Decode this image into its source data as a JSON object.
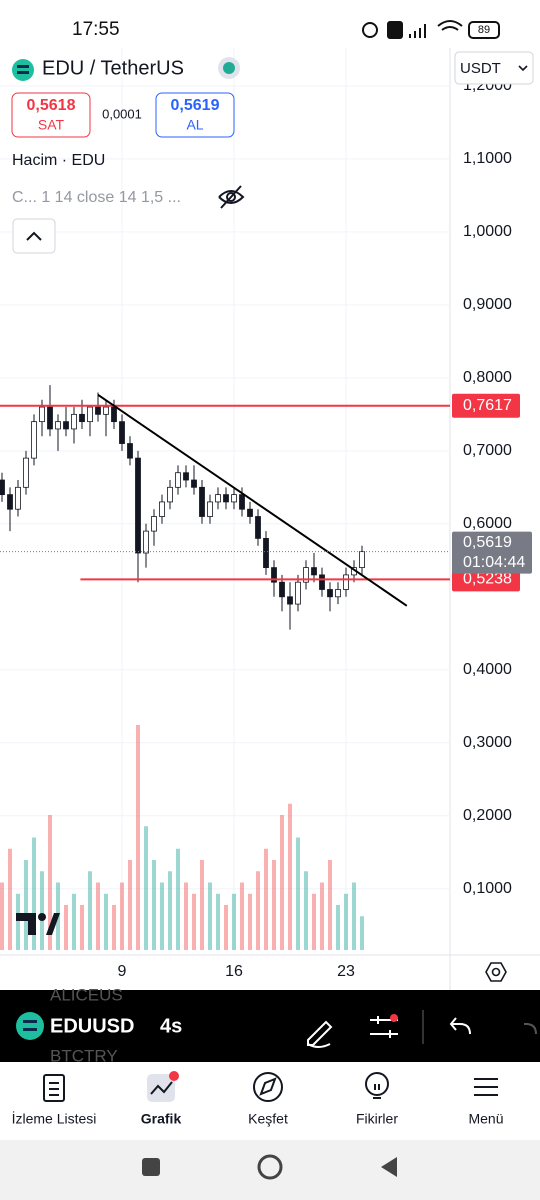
{
  "status_bar": {
    "time": "17:55",
    "battery": "89"
  },
  "header": {
    "symbol": "EDU / TetherUS",
    "currency": "USDT",
    "sell_price": "0,5618",
    "sell_label": "SAT",
    "spread": "0,0001",
    "buy_price": "0,5619",
    "buy_label": "AL",
    "volume_label": "Hacim · EDU",
    "indicator_label": "C... 1 14 close 14 1,5 ..."
  },
  "chart_data": {
    "type": "candlestick",
    "up_color": "#26a69a",
    "down_color": "#ef5350",
    "grid": true,
    "ylim": [
      0.016,
      1.252
    ],
    "yticks": [
      {
        "value": 0.1,
        "label": "0,1000"
      },
      {
        "value": 0.2,
        "label": "0,2000"
      },
      {
        "value": 0.3,
        "label": "0,3000"
      },
      {
        "value": 0.4,
        "label": "0,4000"
      },
      {
        "value": 0.6,
        "label": "0,6000"
      },
      {
        "value": 0.7,
        "label": "0,7000"
      },
      {
        "value": 0.8,
        "label": "0,8000"
      },
      {
        "value": 0.9,
        "label": "0,9000"
      },
      {
        "value": 1.0,
        "label": "1,0000"
      },
      {
        "value": 1.1,
        "label": "1,1000"
      },
      {
        "value": 1.2,
        "label": "1,2000"
      }
    ],
    "xlim": [
      1.375,
      29.5
    ],
    "xticks": [
      9,
      16,
      23
    ],
    "x": [
      1.5,
      2,
      2.5,
      3,
      3.5,
      4,
      4.5,
      5,
      5.5,
      6,
      6.5,
      7,
      7.5,
      8,
      8.5,
      9,
      9.5,
      10,
      10.5,
      11,
      11.5,
      12,
      12.5,
      13,
      13.5,
      14,
      14.5,
      15,
      15.5,
      16,
      16.5,
      17,
      17.5,
      18,
      18.5,
      19,
      19.5,
      20,
      20.5,
      21,
      21.5,
      22,
      22.5,
      23,
      23.5,
      24
    ],
    "candles": [
      [
        0.66,
        0.67,
        0.63,
        0.64
      ],
      [
        0.64,
        0.65,
        0.59,
        0.62
      ],
      [
        0.62,
        0.66,
        0.61,
        0.65
      ],
      [
        0.65,
        0.7,
        0.64,
        0.69
      ],
      [
        0.69,
        0.75,
        0.68,
        0.74
      ],
      [
        0.74,
        0.77,
        0.72,
        0.76
      ],
      [
        0.76,
        0.79,
        0.72,
        0.73
      ],
      [
        0.73,
        0.75,
        0.7,
        0.74
      ],
      [
        0.74,
        0.76,
        0.72,
        0.73
      ],
      [
        0.73,
        0.76,
        0.71,
        0.75
      ],
      [
        0.75,
        0.77,
        0.73,
        0.74
      ],
      [
        0.74,
        0.76,
        0.72,
        0.76
      ],
      [
        0.76,
        0.78,
        0.74,
        0.75
      ],
      [
        0.75,
        0.77,
        0.72,
        0.76
      ],
      [
        0.76,
        0.77,
        0.73,
        0.74
      ],
      [
        0.74,
        0.75,
        0.7,
        0.71
      ],
      [
        0.71,
        0.72,
        0.68,
        0.69
      ],
      [
        0.69,
        0.7,
        0.52,
        0.56
      ],
      [
        0.56,
        0.6,
        0.54,
        0.59
      ],
      [
        0.59,
        0.62,
        0.57,
        0.61
      ],
      [
        0.61,
        0.64,
        0.6,
        0.63
      ],
      [
        0.63,
        0.66,
        0.62,
        0.65
      ],
      [
        0.65,
        0.68,
        0.64,
        0.67
      ],
      [
        0.67,
        0.68,
        0.65,
        0.66
      ],
      [
        0.66,
        0.68,
        0.64,
        0.65
      ],
      [
        0.65,
        0.66,
        0.6,
        0.61
      ],
      [
        0.61,
        0.64,
        0.6,
        0.63
      ],
      [
        0.63,
        0.65,
        0.62,
        0.64
      ],
      [
        0.64,
        0.65,
        0.62,
        0.63
      ],
      [
        0.63,
        0.65,
        0.62,
        0.64
      ],
      [
        0.64,
        0.65,
        0.61,
        0.62
      ],
      [
        0.62,
        0.63,
        0.6,
        0.61
      ],
      [
        0.61,
        0.62,
        0.57,
        0.58
      ],
      [
        0.58,
        0.59,
        0.53,
        0.54
      ],
      [
        0.54,
        0.55,
        0.5,
        0.52
      ],
      [
        0.52,
        0.53,
        0.48,
        0.5
      ],
      [
        0.5,
        0.52,
        0.455,
        0.49
      ],
      [
        0.49,
        0.53,
        0.48,
        0.52
      ],
      [
        0.52,
        0.55,
        0.51,
        0.54
      ],
      [
        0.54,
        0.56,
        0.52,
        0.53
      ],
      [
        0.53,
        0.54,
        0.5,
        0.51
      ],
      [
        0.51,
        0.52,
        0.48,
        0.5
      ],
      [
        0.5,
        0.52,
        0.49,
        0.51
      ],
      [
        0.51,
        0.54,
        0.5,
        0.53
      ],
      [
        0.53,
        0.55,
        0.52,
        0.54
      ],
      [
        0.54,
        0.57,
        0.53,
        0.5619
      ]
    ],
    "volumes": [
      30,
      45,
      25,
      40,
      50,
      35,
      60,
      30,
      20,
      25,
      20,
      35,
      30,
      25,
      20,
      30,
      40,
      100,
      55,
      40,
      30,
      35,
      45,
      30,
      25,
      40,
      30,
      25,
      20,
      25,
      30,
      25,
      35,
      45,
      40,
      60,
      65,
      50,
      35,
      25,
      30,
      40,
      20,
      25,
      30,
      15
    ],
    "hlines": [
      {
        "value": 0.7617,
        "label": "0,7617",
        "color": "#f23645"
      },
      {
        "value": 0.5238,
        "label": "0,5238",
        "color": "#f23645",
        "from_x": 6.4
      }
    ],
    "trendline": {
      "x": [
        7.5,
        26.8
      ],
      "y": [
        0.7767,
        0.4877
      ],
      "color": "#000000"
    },
    "last_price": {
      "value": 0.5619,
      "label": "0,5619",
      "countdown": "01:04:44"
    }
  },
  "toolbar": {
    "symbol": "EDUUSD",
    "interval": "4s",
    "ghost_top": "ALICEUS",
    "ghost_bottom": "BTCTRY"
  },
  "nav": {
    "watchlist": "İzleme Listesi",
    "chart": "Grafik",
    "explore": "Keşfet",
    "ideas": "Fikirler",
    "menu": "Menü"
  }
}
